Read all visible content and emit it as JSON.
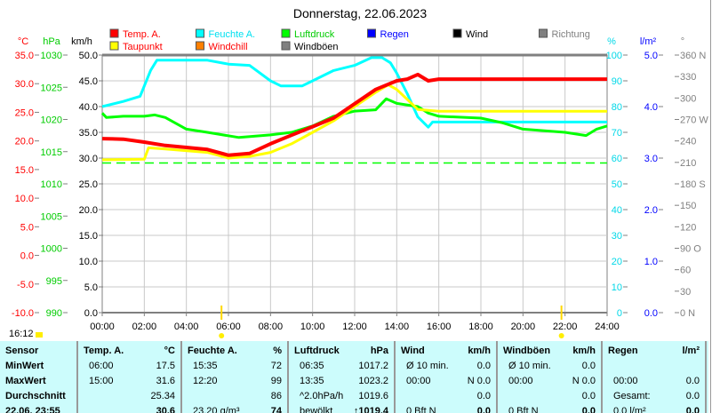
{
  "chart_data": {
    "type": "line",
    "title": "Donnerstag, 22.06.2023",
    "x_ticks": [
      "00:00",
      "02:00",
      "04:00",
      "06:00",
      "08:00",
      "10:00",
      "12:00",
      "14:00",
      "16:00",
      "18:00",
      "20:00",
      "22:00",
      "24:00"
    ],
    "x_range_hours": [
      0,
      24
    ],
    "axes": {
      "temp": {
        "label": "°C",
        "ticks": [
          "35.0",
          "30.0",
          "25.0",
          "20.0",
          "15.0",
          "10.0",
          "5.0",
          "0.0",
          "-5.0",
          "-10.0"
        ],
        "range": [
          -10,
          35
        ],
        "color": "#ff0000"
      },
      "press": {
        "label": "hPa",
        "ticks": [
          "1030",
          "1025",
          "1020",
          "1015",
          "1010",
          "1005",
          "1000",
          "995",
          "990"
        ],
        "range": [
          990,
          1030
        ],
        "color": "#00cc00"
      },
      "wind": {
        "label": "km/h",
        "ticks": [
          "50.0",
          "45.0",
          "40.0",
          "35.0",
          "30.0",
          "25.0",
          "20.0",
          "15.0",
          "10.0",
          "5.0",
          "0.0"
        ],
        "range": [
          0,
          50
        ],
        "color": "#000000"
      },
      "hum": {
        "label": "%",
        "ticks": [
          "100",
          "90",
          "80",
          "70",
          "60",
          "50",
          "40",
          "30",
          "20",
          "10",
          "0"
        ],
        "range": [
          0,
          100
        ],
        "color": "#00d8e8"
      },
      "rain": {
        "label": "l/m²",
        "ticks": [
          "5.0",
          "4.0",
          "3.0",
          "2.0",
          "1.0",
          "0.0"
        ],
        "range": [
          0,
          5
        ],
        "color": "#0000ff"
      },
      "dir": {
        "label": "°",
        "ticks": [
          "360 N",
          "330",
          "300",
          "270 W",
          "240",
          "210",
          "180 S",
          "150",
          "120",
          "90 O",
          "60",
          "30",
          "0 N"
        ],
        "range": [
          0,
          360
        ],
        "color": "#808080"
      }
    },
    "legend": [
      {
        "name": "Temp. A.",
        "color": "#ff0000",
        "text_color": "#ff0000"
      },
      {
        "name": "Feuchte A.",
        "color": "#00ffff",
        "text_color": "#00e0f0"
      },
      {
        "name": "Luftdruck",
        "color": "#00ff00",
        "text_color": "#00cc00"
      },
      {
        "name": "Regen",
        "color": "#0000ff",
        "text_color": "#0000ff"
      },
      {
        "name": "Wind",
        "color": "#000000",
        "text_color": "#000000"
      },
      {
        "name": "Richtung",
        "color": "#808080",
        "text_color": "#808080"
      },
      {
        "name": "Taupunkt",
        "color": "#ffff00",
        "text_color": "#ff0000"
      },
      {
        "name": "Windchill",
        "color": "#ff8000",
        "text_color": "#ff0000"
      },
      {
        "name": "Windböen",
        "color": "#808080",
        "text_color": "#000000"
      }
    ],
    "series": [
      {
        "name": "Feuchte A.",
        "axis": "hum",
        "color": "#00ffff",
        "x": [
          0,
          1,
          1.8,
          2.3,
          2.6,
          5,
          6,
          7,
          8,
          8.5,
          9.5,
          10,
          11,
          12,
          12.8,
          13.3,
          13.7,
          14,
          14.5,
          15,
          15.5,
          15.7,
          16,
          24
        ],
        "y": [
          80,
          82,
          84,
          94,
          98,
          98,
          96.5,
          96,
          90,
          88,
          88,
          90,
          94,
          96,
          99,
          99,
          97,
          93,
          85,
          76,
          72,
          74,
          74,
          74
        ]
      },
      {
        "name": "Luftdruck",
        "axis": "press",
        "color": "#00ff00",
        "x": [
          0,
          0.2,
          1,
          2,
          2.5,
          3,
          4,
          5,
          6.5,
          8,
          9,
          10,
          11,
          12,
          13,
          13.5,
          14,
          15,
          15.5,
          16,
          18,
          19,
          20,
          22,
          23,
          23.5,
          24
        ],
        "y": [
          1021,
          1020.3,
          1020.5,
          1020.5,
          1020.7,
          1020.3,
          1018.5,
          1018,
          1017.2,
          1017.6,
          1018,
          1019,
          1020.5,
          1021.3,
          1021.5,
          1023.2,
          1022.5,
          1022,
          1021,
          1020.5,
          1020.2,
          1019.5,
          1018.5,
          1018,
          1017.5,
          1018.5,
          1019
        ]
      },
      {
        "name": "Taupunkt",
        "axis": "temp",
        "color": "#ffff00",
        "x": [
          0,
          2,
          2.2,
          3,
          5,
          6,
          7,
          8,
          9,
          10,
          11,
          12,
          13,
          13.6,
          14,
          15,
          16,
          24
        ],
        "y": [
          16.7,
          16.8,
          18.8,
          18.6,
          18,
          17,
          17.3,
          18,
          19.5,
          21.5,
          23.5,
          26,
          28.5,
          29.8,
          29,
          25.5,
          25.2,
          25.2
        ]
      },
      {
        "name": "Temp. A.",
        "axis": "temp",
        "color": "#ff0000",
        "x": [
          0,
          1,
          2,
          3,
          5,
          6,
          7,
          8,
          9,
          10,
          11,
          12,
          13,
          14,
          14.5,
          15,
          15.5,
          16,
          24
        ],
        "y": [
          20.4,
          20.3,
          19.8,
          19.2,
          18.5,
          17.5,
          17.8,
          19.5,
          21,
          22.5,
          24,
          26.5,
          29,
          30.5,
          30.8,
          31.6,
          30.5,
          30.8,
          30.8
        ]
      }
    ],
    "reference_line": {
      "axis": "press",
      "value": 1013.25,
      "color": "#00ff00"
    },
    "sun_markers_hours": [
      5.67,
      21.83
    ]
  },
  "current_time": "16:12",
  "table": {
    "columns": [
      {
        "head": "Sensor",
        "unit": "",
        "rows": [
          {
            "l": "MinWert"
          },
          {
            "l": "MaxWert"
          },
          {
            "l": "Durchschnitt"
          },
          {
            "l": "22.06. 23:55"
          }
        ]
      },
      {
        "head": "Temp. A.",
        "unit": "°C",
        "rows": [
          {
            "l": "06:00",
            "r": "17.5"
          },
          {
            "l": "15:00",
            "r": "31.6"
          },
          {
            "l": "",
            "r": "25.34"
          },
          {
            "l": "",
            "r": "30.6"
          }
        ]
      },
      {
        "head": "Feuchte A.",
        "unit": "%",
        "rows": [
          {
            "l": "15:35",
            "r": "72"
          },
          {
            "l": "12:20",
            "r": "99"
          },
          {
            "l": "",
            "r": "86"
          },
          {
            "l": "23.20 g/m³",
            "r": "74"
          }
        ]
      },
      {
        "head": "Luftdruck",
        "unit": "hPa",
        "rows": [
          {
            "l": "06:35",
            "r": "1017.2"
          },
          {
            "l": "13:35",
            "r": "1023.2"
          },
          {
            "l": "^2.0hPa/h",
            "r": "1019.6"
          },
          {
            "l": "bewölkt",
            "r": "↑1019.4"
          }
        ]
      },
      {
        "head": "Wind",
        "unit": "km/h",
        "rows": [
          {
            "l": "Ø 10 min.",
            "r": "0.0"
          },
          {
            "l": "00:00",
            "r": "N 0.0"
          },
          {
            "l": "",
            "r": "0.0"
          },
          {
            "l": "0 Bft N",
            "r": "0.0"
          }
        ]
      },
      {
        "head": "Windböen",
        "unit": "km/h",
        "rows": [
          {
            "l": "Ø 10 min.",
            "r": "0.0"
          },
          {
            "l": "00:00",
            "r": "N 0.0"
          },
          {
            "l": "",
            "r": "0.0"
          },
          {
            "l": "0 Bft N",
            "r": "0.0"
          }
        ]
      },
      {
        "head": "Regen",
        "unit": "l/m²",
        "rows": [
          {
            "l": "",
            "r": ""
          },
          {
            "l": "00:00",
            "r": "0.0"
          },
          {
            "l": "Gesamt:",
            "r": "0.0"
          },
          {
            "l": "0.0 l/m²",
            "r": "0.0"
          }
        ]
      }
    ]
  }
}
